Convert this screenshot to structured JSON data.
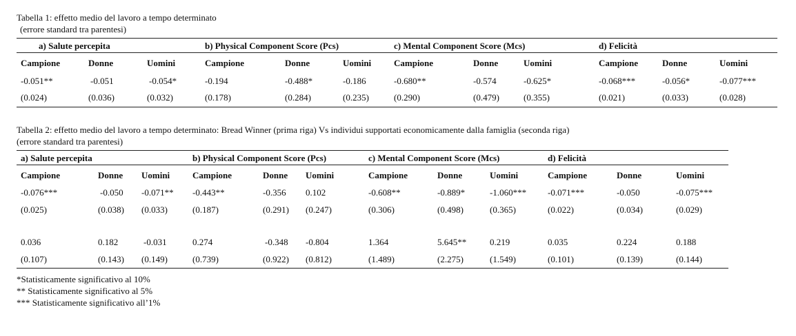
{
  "table1": {
    "title": "Tabella 1: effetto medio del lavoro a tempo determinato",
    "subtitle": "(errore standard tra parentesi)",
    "groups": [
      "a) Salute percepita",
      "b) Physical Component Score (Pcs)",
      "c) Mental Component Score (Mcs)",
      "d) Felicità"
    ],
    "columns": [
      "Campione",
      "Donne",
      "Uomini",
      "Campione",
      "Donne",
      "Uomini",
      "Campione",
      "Donne",
      "Uomini",
      "Campione",
      "Donne",
      "Uomini"
    ],
    "rows": [
      [
        "-0.051**",
        "-0.051",
        "-0.054*",
        "-0.194",
        "-0.488*",
        "-0.186",
        "-0.680**",
        "-0.574",
        "-0.625*",
        "-0.068***",
        "-0.056*",
        "-0.077***"
      ],
      [
        "(0.024)",
        "(0.036)",
        "(0.032)",
        "(0.178)",
        "(0.284)",
        "(0.235)",
        "(0.290)",
        "(0.479)",
        "(0.355)",
        "(0.021)",
        "(0.033)",
        "(0.028)"
      ]
    ]
  },
  "table2": {
    "title": "Tabella 2: effetto medio del lavoro a tempo determinato: Bread Winner (prima riga) Vs individui supportati economicamente dalla famiglia (seconda riga)",
    "subtitle": "(errore standard tra parentesi)",
    "groups": [
      "a) Salute percepita",
      "b) Physical Component Score (Pcs)",
      "c) Mental Component Score (Mcs)",
      "d) Felicità"
    ],
    "columns": [
      "Campione",
      "Donne",
      "Uomini",
      "Campione",
      "Donne",
      "Uomini",
      "Campione",
      "Donne",
      "Uomini",
      "Campione",
      "Donne",
      "Uomini"
    ],
    "rows": [
      [
        "-0.076***",
        "-0.050",
        "-0.071**",
        "-0.443**",
        "-0.356",
        "0.102",
        "-0.608**",
        "-0.889*",
        "-1.060***",
        "-0.071***",
        "-0.050",
        "-0.075***"
      ],
      [
        "(0.025)",
        "(0.038)",
        "(0.033)",
        "(0.187)",
        "(0.291)",
        "(0.247)",
        "(0.306)",
        "(0.498)",
        "(0.365)",
        "(0.022)",
        "(0.034)",
        "(0.029)"
      ],
      [
        "0.036",
        "0.182",
        "-0.031",
        "0.274",
        "-0.348",
        "-0.804",
        "1.364",
        "5.645**",
        "0.219",
        "0.035",
        "0.224",
        "0.188"
      ],
      [
        "(0.107)",
        "(0.143)",
        "(0.149)",
        "(0.739)",
        "(0.922)",
        "(0.812)",
        "(1.489)",
        "(2.275)",
        "(1.549)",
        "(0.101)",
        "(0.139)",
        "(0.144)"
      ]
    ]
  },
  "notes": [
    "*Statisticamente significativo al 10%",
    "** Statisticamente significativo al 5%",
    "*** Statisticamente significativo all’1%"
  ]
}
